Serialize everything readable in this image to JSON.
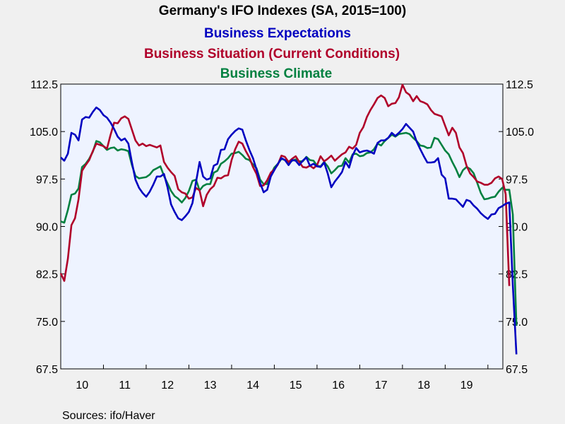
{
  "chart_data": {
    "type": "line",
    "title": "Germany's IFO Indexes (SA, 2015=100)",
    "start_year": 2010,
    "start_month": 1,
    "x_tick_labels": [
      "10",
      "11",
      "12",
      "13",
      "14",
      "15",
      "16",
      "17",
      "18",
      "19"
    ],
    "y_ticks": [
      "112.5",
      "105.0",
      "97.5",
      "90.0",
      "82.5",
      "75.0",
      "67.5"
    ],
    "ylim": [
      67.5,
      112.5
    ],
    "grid": false,
    "legend_placement": "top-center",
    "source": "Sources:  ifo/Haver",
    "series": [
      {
        "name": "Business Expectations",
        "color": "#0000c0",
        "values": [
          100.9,
          100.4,
          101.5,
          104.8,
          104.5,
          103.6,
          106.9,
          107.3,
          107.2,
          108.1,
          108.8,
          108.4,
          107.6,
          107.2,
          106.4,
          105.4,
          104.2,
          103.6,
          103.9,
          103.1,
          100.1,
          97.4,
          96.1,
          95.3,
          94.7,
          95.5,
          96.6,
          97.9,
          97.9,
          98.3,
          96.2,
          93.5,
          92.3,
          91.3,
          91.0,
          91.6,
          92.3,
          93.7,
          97.0,
          100.2,
          97.9,
          97.4,
          97.6,
          99.6,
          99.9,
          102.1,
          102.2,
          103.8,
          104.5,
          105.1,
          105.5,
          105.3,
          103.6,
          102.1,
          100.8,
          99.0,
          96.9,
          95.4,
          95.8,
          97.9,
          98.9,
          99.9,
          100.8,
          100.5,
          99.7,
          100.5,
          100.4,
          99.7,
          100.4,
          100.9,
          99.6,
          99.9,
          99.5,
          99.4,
          100.1,
          98.4,
          96.2,
          97.1,
          97.8,
          98.6,
          100.2,
          99.3,
          101.2,
          102.4,
          101.7,
          101.9,
          102.0,
          101.8,
          101.5,
          103.2,
          103.6,
          103.6,
          104.0,
          104.8,
          104.3,
          104.8,
          105.4,
          106.2,
          105.6,
          105.0,
          103.4,
          102.2,
          101.1,
          100.1,
          100.1,
          100.2,
          100.8,
          98.2,
          97.6,
          94.4,
          94.4,
          94.3,
          93.7,
          93.1,
          94.2,
          94.0,
          93.3,
          92.8,
          92.1,
          91.6,
          91.2,
          91.9,
          92.0,
          92.9,
          93.2,
          93.6,
          93.8,
          80.8,
          69.8
        ]
      },
      {
        "name": "Business Situation (Current Conditions)",
        "color": "#b0002a",
        "values": [
          82.6,
          81.4,
          84.9,
          90.2,
          91.3,
          94.3,
          98.8,
          99.7,
          100.5,
          101.9,
          103.1,
          102.9,
          102.7,
          102.3,
          104.5,
          106.4,
          106.3,
          107.1,
          107.4,
          107.0,
          105.3,
          103.6,
          102.8,
          103.1,
          102.7,
          102.9,
          102.7,
          102.5,
          102.8,
          100.2,
          99.3,
          98.6,
          98.0,
          95.9,
          95.4,
          95.2,
          94.4,
          94.6,
          96.1,
          95.7,
          93.2,
          95.0,
          95.9,
          96.4,
          97.7,
          97.6,
          98.0,
          98.1,
          100.5,
          102.2,
          103.4,
          103.1,
          101.9,
          100.9,
          99.4,
          98.3,
          96.4,
          96.5,
          97.3,
          98.5,
          99.0,
          99.8,
          101.2,
          101.0,
          100.2,
          100.7,
          101.1,
          100.2,
          99.4,
          99.3,
          99.6,
          99.2,
          99.7,
          101.1,
          100.3,
          100.7,
          101.2,
          100.4,
          100.9,
          101.4,
          101.7,
          102.6,
          102.3,
          102.9,
          104.8,
          105.7,
          107.3,
          108.4,
          109.3,
          110.3,
          110.7,
          110.3,
          109.0,
          109.4,
          109.5,
          110.4,
          112.4,
          111.2,
          110.8,
          109.8,
          110.6,
          109.8,
          109.6,
          109.3,
          108.4,
          107.8,
          107.6,
          107.4,
          105.9,
          104.4,
          105.6,
          104.8,
          102.5,
          101.6,
          99.6,
          98.4,
          97.8,
          97.1,
          96.9,
          96.6,
          96.6,
          96.9,
          97.6,
          97.9,
          97.5,
          95.1,
          80.6
        ]
      },
      {
        "name": "Business Climate",
        "color": "#008040",
        "values": [
          90.8,
          90.6,
          92.6,
          95.0,
          95.2,
          96.0,
          99.4,
          99.9,
          100.7,
          101.8,
          103.5,
          103.3,
          102.7,
          102.1,
          102.4,
          102.5,
          102.0,
          102.2,
          102.1,
          101.9,
          99.7,
          98.0,
          97.6,
          97.7,
          97.8,
          98.2,
          98.9,
          99.2,
          99.5,
          98.0,
          96.8,
          95.6,
          94.8,
          94.4,
          93.8,
          94.5,
          95.6,
          97.2,
          97.4,
          95.7,
          96.4,
          96.7,
          96.7,
          98.5,
          98.8,
          99.9,
          100.3,
          100.8,
          101.5,
          101.6,
          101.8,
          101.3,
          100.7,
          100.5,
          99.8,
          99.2,
          97.4,
          96.7,
          96.7,
          98.2,
          99.3,
          99.9,
          100.7,
          100.5,
          99.9,
          100.4,
          100.6,
          100.3,
          100.3,
          101.0,
          100.5,
          100.4,
          99.6,
          99.5,
          100.2,
          99.5,
          98.4,
          98.9,
          99.5,
          99.6,
          100.8,
          100.1,
          101.4,
          101.5,
          101.1,
          101.2,
          101.6,
          101.7,
          102.2,
          103.1,
          102.8,
          103.5,
          104.0,
          104.5,
          104.2,
          104.6,
          104.7,
          104.8,
          104.6,
          104.0,
          103.5,
          102.8,
          102.7,
          102.4,
          102.5,
          104.0,
          103.8,
          102.9,
          102.0,
          101.4,
          100.2,
          99.1,
          97.8,
          98.9,
          99.4,
          99.1,
          98.4,
          96.9,
          95.3,
          94.3,
          94.4,
          94.6,
          94.7,
          95.5,
          96.1,
          95.8,
          95.8,
          91.9,
          74.3
        ]
      }
    ]
  }
}
